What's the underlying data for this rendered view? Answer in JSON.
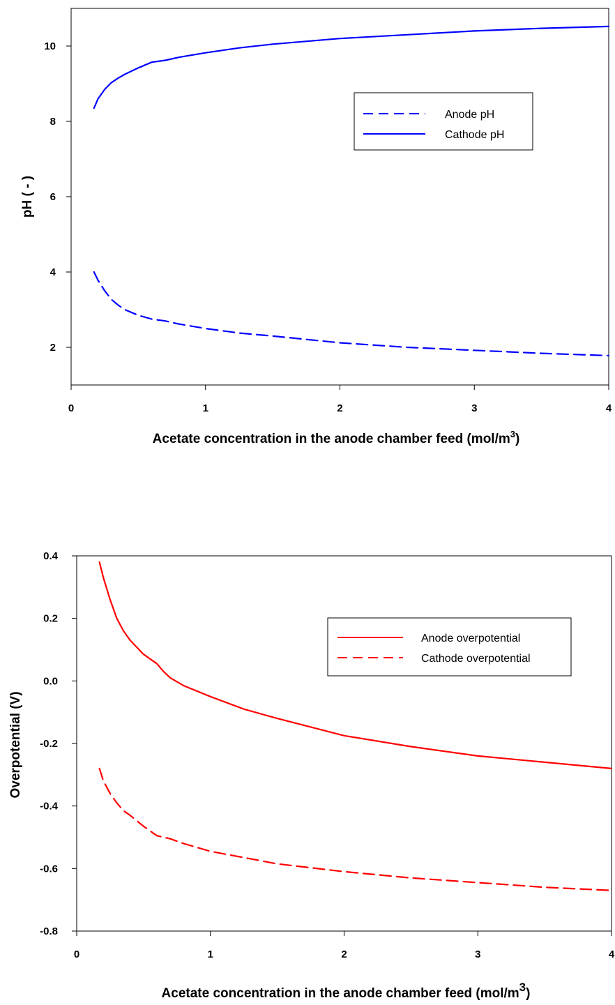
{
  "chart_data": [
    {
      "type": "line",
      "title": "",
      "xlabel_main": "Acetate concentration in the anode chamber feed (mol/m",
      "xlabel_sup": "3",
      "xlabel_end": ")",
      "ylabel": "pH ( - )",
      "xlim": [
        0,
        4
      ],
      "ylim": [
        1,
        11
      ],
      "xticks": [
        "0",
        "1",
        "2",
        "3",
        "4"
      ],
      "yticks": [
        "2",
        "4",
        "6",
        "8",
        "10"
      ],
      "ytick_values": [
        2,
        4,
        6,
        8,
        10
      ],
      "legend_position": "upper-right",
      "grid": false,
      "series": [
        {
          "name": "Anode pH",
          "color": "#0000ff",
          "dash": "dashed",
          "x": [
            0.17,
            0.2,
            0.25,
            0.3,
            0.35,
            0.4,
            0.5,
            0.6,
            0.7,
            0.8,
            1.0,
            1.25,
            1.5,
            2.0,
            2.5,
            3.0,
            3.5,
            4.0
          ],
          "y": [
            4.0,
            3.78,
            3.5,
            3.27,
            3.12,
            3.0,
            2.85,
            2.75,
            2.7,
            2.62,
            2.5,
            2.38,
            2.3,
            2.12,
            2.0,
            1.92,
            1.84,
            1.78
          ]
        },
        {
          "name": "Cathode pH",
          "color": "#0000ff",
          "dash": "solid",
          "x": [
            0.17,
            0.2,
            0.25,
            0.3,
            0.35,
            0.4,
            0.5,
            0.6,
            0.7,
            0.8,
            1.0,
            1.25,
            1.5,
            2.0,
            2.5,
            3.0,
            3.5,
            4.0
          ],
          "y": [
            8.35,
            8.6,
            8.85,
            9.03,
            9.15,
            9.25,
            9.42,
            9.57,
            9.62,
            9.7,
            9.82,
            9.95,
            10.05,
            10.2,
            10.3,
            10.4,
            10.47,
            10.52
          ]
        }
      ]
    },
    {
      "type": "line",
      "title": "",
      "xlabel_main": "Acetate concentration in the anode chamber feed (mol/m",
      "xlabel_sup": "3",
      "xlabel_end": ")",
      "ylabel": "Overpotential (V)",
      "xlim": [
        0,
        4
      ],
      "ylim": [
        -0.8,
        0.4
      ],
      "xticks": [
        "0",
        "1",
        "2",
        "3",
        "4"
      ],
      "yticks": [
        "-0.8",
        "-0.6",
        "-0.4",
        "-0.2",
        "0.0",
        "0.2",
        "0.4"
      ],
      "ytick_values": [
        -0.8,
        -0.6,
        -0.4,
        -0.2,
        0.0,
        0.2,
        0.4
      ],
      "legend_position": "upper-right",
      "grid": false,
      "series": [
        {
          "name": "Anode overpotential",
          "color": "#ff0000",
          "dash": "solid",
          "x": [
            0.17,
            0.2,
            0.25,
            0.3,
            0.35,
            0.4,
            0.5,
            0.6,
            0.65,
            0.7,
            0.8,
            1.0,
            1.25,
            1.5,
            2.0,
            2.5,
            3.0,
            3.5,
            4.0
          ],
          "y": [
            0.38,
            0.33,
            0.26,
            0.2,
            0.16,
            0.13,
            0.085,
            0.055,
            0.03,
            0.01,
            -0.015,
            -0.05,
            -0.09,
            -0.12,
            -0.175,
            -0.21,
            -0.24,
            -0.26,
            -0.28
          ]
        },
        {
          "name": "Cathode overpotential",
          "color": "#ff0000",
          "dash": "dashed",
          "x": [
            0.17,
            0.2,
            0.25,
            0.3,
            0.35,
            0.4,
            0.5,
            0.6,
            0.7,
            0.8,
            1.0,
            1.25,
            1.5,
            2.0,
            2.5,
            3.0,
            3.5,
            4.0
          ],
          "y": [
            -0.28,
            -0.32,
            -0.36,
            -0.39,
            -0.415,
            -0.43,
            -0.465,
            -0.495,
            -0.505,
            -0.52,
            -0.545,
            -0.565,
            -0.585,
            -0.61,
            -0.63,
            -0.645,
            -0.66,
            -0.67
          ]
        }
      ]
    }
  ]
}
